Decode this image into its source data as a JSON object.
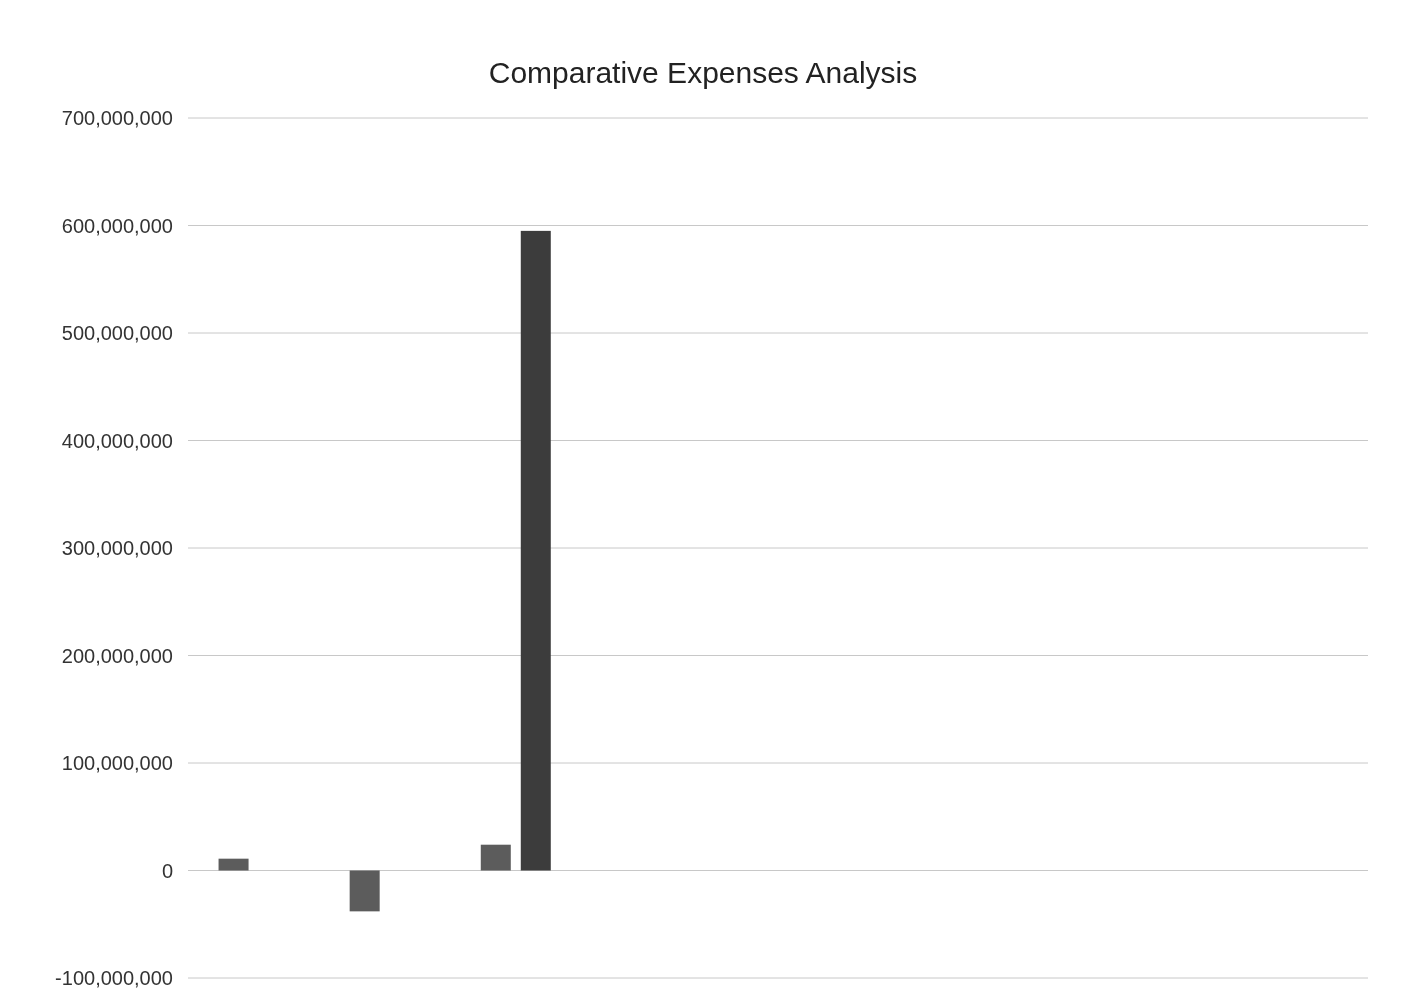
{
  "chart_data": {
    "type": "bar",
    "title": "Comparative Expenses Analysis",
    "categories": [
      null,
      null,
      null,
      null,
      null,
      null,
      null,
      null,
      null
    ],
    "series": [
      {
        "color": "#5c5c5c",
        "values": [
          11000000,
          -38000000,
          24000000,
          null,
          null,
          null,
          null,
          null,
          null
        ]
      },
      {
        "color": "#3c3c3c",
        "values": [
          null,
          null,
          595000000,
          null,
          null,
          null,
          null,
          null,
          null
        ]
      }
    ],
    "ylim": [
      -100000000,
      700000000
    ],
    "yticks": [
      {
        "value": -100000000,
        "label": "-100,000,000"
      },
      {
        "value": 0,
        "label": "0"
      },
      {
        "value": 100000000,
        "label": "100,000,000"
      },
      {
        "value": 200000000,
        "label": "200,000,000"
      },
      {
        "value": 300000000,
        "label": "300,000,000"
      },
      {
        "value": 400000000,
        "label": "400,000,000"
      },
      {
        "value": 500000000,
        "label": "500,000,000"
      },
      {
        "value": 600000000,
        "label": "600,000,000"
      },
      {
        "value": 700000000,
        "label": "700,000,000"
      }
    ],
    "grid": "y"
  }
}
